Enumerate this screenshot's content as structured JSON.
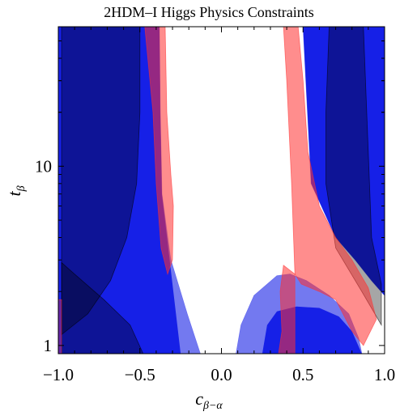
{
  "chart_data": {
    "type": "area",
    "title": "2HDM–I Higgs Physics Constraints",
    "xlabel": {
      "main": "c",
      "sub": "β−α"
    },
    "ylabel": {
      "main": "t",
      "sub": "β"
    },
    "xlim": [
      -1.0,
      1.0
    ],
    "ylim": [
      0.9,
      60
    ],
    "y_scale": "log",
    "x_ticks": [
      {
        "value": -1.0,
        "label": "−1.0"
      },
      {
        "value": -0.5,
        "label": "−0.5"
      },
      {
        "value": 0.0,
        "label": "0.0"
      },
      {
        "value": 0.5,
        "label": "0.5"
      },
      {
        "value": 1.0,
        "label": "1.0"
      }
    ],
    "y_ticks": [
      {
        "value": 1,
        "label": "1"
      },
      {
        "value": 10,
        "label": "10"
      }
    ],
    "regions": [
      {
        "color": "#0a14e6",
        "opacity": 0.95,
        "polygon": [
          [
            -1.0,
            0.9
          ],
          [
            -0.13,
            0.9
          ],
          [
            -0.21,
            1.5
          ],
          [
            -0.31,
            3.0
          ],
          [
            -0.365,
            7
          ],
          [
            -0.375,
            20
          ],
          [
            -0.38,
            60
          ],
          [
            -1.0,
            60
          ]
        ]
      },
      {
        "color": "#0a14e6",
        "opacity": 0.95,
        "polygon": [
          [
            0.09,
            0.9
          ],
          [
            0.12,
            1.3
          ],
          [
            0.2,
            1.9
          ],
          [
            0.34,
            2.45
          ],
          [
            0.42,
            2.5
          ],
          [
            0.52,
            2.3
          ],
          [
            0.66,
            1.9
          ],
          [
            0.78,
            1.5
          ],
          [
            0.84,
            1.1
          ],
          [
            0.86,
            0.9
          ]
        ]
      },
      {
        "color": "#0a14e6",
        "opacity": 0.95,
        "polygon": [
          [
            0.5,
            60
          ],
          [
            0.55,
            8
          ],
          [
            0.7,
            4
          ],
          [
            0.82,
            3
          ],
          [
            0.92,
            2.3
          ],
          [
            1.0,
            1.9
          ],
          [
            1.0,
            60
          ]
        ]
      },
      {
        "color": "#ffffff",
        "opacity": 0.4,
        "polygon": [
          [
            -0.13,
            0.9
          ],
          [
            -0.25,
            0.9
          ],
          [
            -0.3,
            2.2
          ],
          [
            -0.365,
            7
          ],
          [
            -0.38,
            60
          ],
          [
            -0.36,
            60
          ],
          [
            -0.345,
            8
          ],
          [
            -0.31,
            3.0
          ],
          [
            -0.21,
            1.5
          ]
        ]
      },
      {
        "color": "#ffffff",
        "opacity": 0.4,
        "polygon": [
          [
            0.09,
            0.9
          ],
          [
            0.25,
            0.9
          ],
          [
            0.28,
            1.3
          ],
          [
            0.34,
            1.55
          ],
          [
            0.46,
            1.65
          ],
          [
            0.6,
            1.62
          ],
          [
            0.72,
            1.45
          ],
          [
            0.8,
            1.2
          ],
          [
            0.86,
            0.9
          ],
          [
            0.84,
            1.1
          ],
          [
            0.78,
            1.5
          ],
          [
            0.66,
            1.9
          ],
          [
            0.52,
            2.3
          ],
          [
            0.42,
            2.5
          ],
          [
            0.34,
            2.45
          ],
          [
            0.2,
            1.9
          ],
          [
            0.12,
            1.3
          ]
        ]
      },
      {
        "color": "#000000",
        "opacity": 0.35,
        "polygon": [
          [
            -0.98,
            60
          ],
          [
            -0.5,
            60
          ],
          [
            -0.5,
            20
          ],
          [
            -0.52,
            8
          ],
          [
            -0.58,
            4
          ],
          [
            -0.68,
            2.3
          ],
          [
            -0.82,
            1.5
          ],
          [
            -0.98,
            1.15
          ]
        ]
      },
      {
        "color": "#000000",
        "opacity": 0.35,
        "polygon": [
          [
            -0.98,
            0.9
          ],
          [
            -0.48,
            0.9
          ],
          [
            -0.56,
            1.3
          ],
          [
            -0.72,
            1.8
          ],
          [
            -0.9,
            2.5
          ],
          [
            -0.98,
            2.9
          ]
        ]
      },
      {
        "color": "#000000",
        "opacity": 0.35,
        "polygon": [
          [
            0.66,
            60
          ],
          [
            0.87,
            60
          ],
          [
            0.92,
            4
          ],
          [
            0.98,
            2.2
          ],
          [
            0.98,
            1.3
          ],
          [
            0.86,
            2.0
          ],
          [
            0.7,
            3.5
          ],
          [
            0.64,
            8
          ],
          [
            0.64,
            20
          ]
        ]
      },
      {
        "color": "#ff3030",
        "opacity": 0.55,
        "polygon": [
          [
            -0.47,
            60
          ],
          [
            -0.345,
            60
          ],
          [
            -0.335,
            20
          ],
          [
            -0.31,
            9
          ],
          [
            -0.295,
            6
          ],
          [
            -0.3,
            3
          ],
          [
            -0.33,
            2.5
          ],
          [
            -0.37,
            3.5
          ],
          [
            -0.4,
            8
          ],
          [
            -0.42,
            20
          ]
        ]
      },
      {
        "color": "#ff3030",
        "opacity": 0.55,
        "polygon": [
          [
            0.38,
            60
          ],
          [
            0.47,
            60
          ],
          [
            0.5,
            30
          ],
          [
            0.53,
            12
          ],
          [
            0.6,
            6
          ],
          [
            0.7,
            4
          ],
          [
            0.8,
            3
          ],
          [
            0.9,
            2.1
          ],
          [
            0.95,
            1.4
          ],
          [
            0.87,
            1.0
          ],
          [
            0.8,
            1.2
          ],
          [
            0.7,
            1.8
          ],
          [
            0.6,
            2.0
          ],
          [
            0.49,
            2.2
          ],
          [
            0.45,
            2.5
          ],
          [
            0.43,
            8
          ],
          [
            0.4,
            30
          ]
        ]
      },
      {
        "color": "#ff3030",
        "opacity": 0.55,
        "polygon": [
          [
            0.35,
            0.9
          ],
          [
            0.45,
            0.9
          ],
          [
            0.45,
            2.5
          ],
          [
            0.38,
            2.8
          ],
          [
            0.36,
            2.0
          ],
          [
            0.37,
            1.2
          ]
        ]
      },
      {
        "color": "#ff3030",
        "opacity": 0.35,
        "polygon": [
          [
            -1.0,
            0.9
          ],
          [
            -0.98,
            0.9
          ],
          [
            -0.98,
            1.8
          ],
          [
            -1.0,
            1.8
          ]
        ]
      }
    ]
  }
}
